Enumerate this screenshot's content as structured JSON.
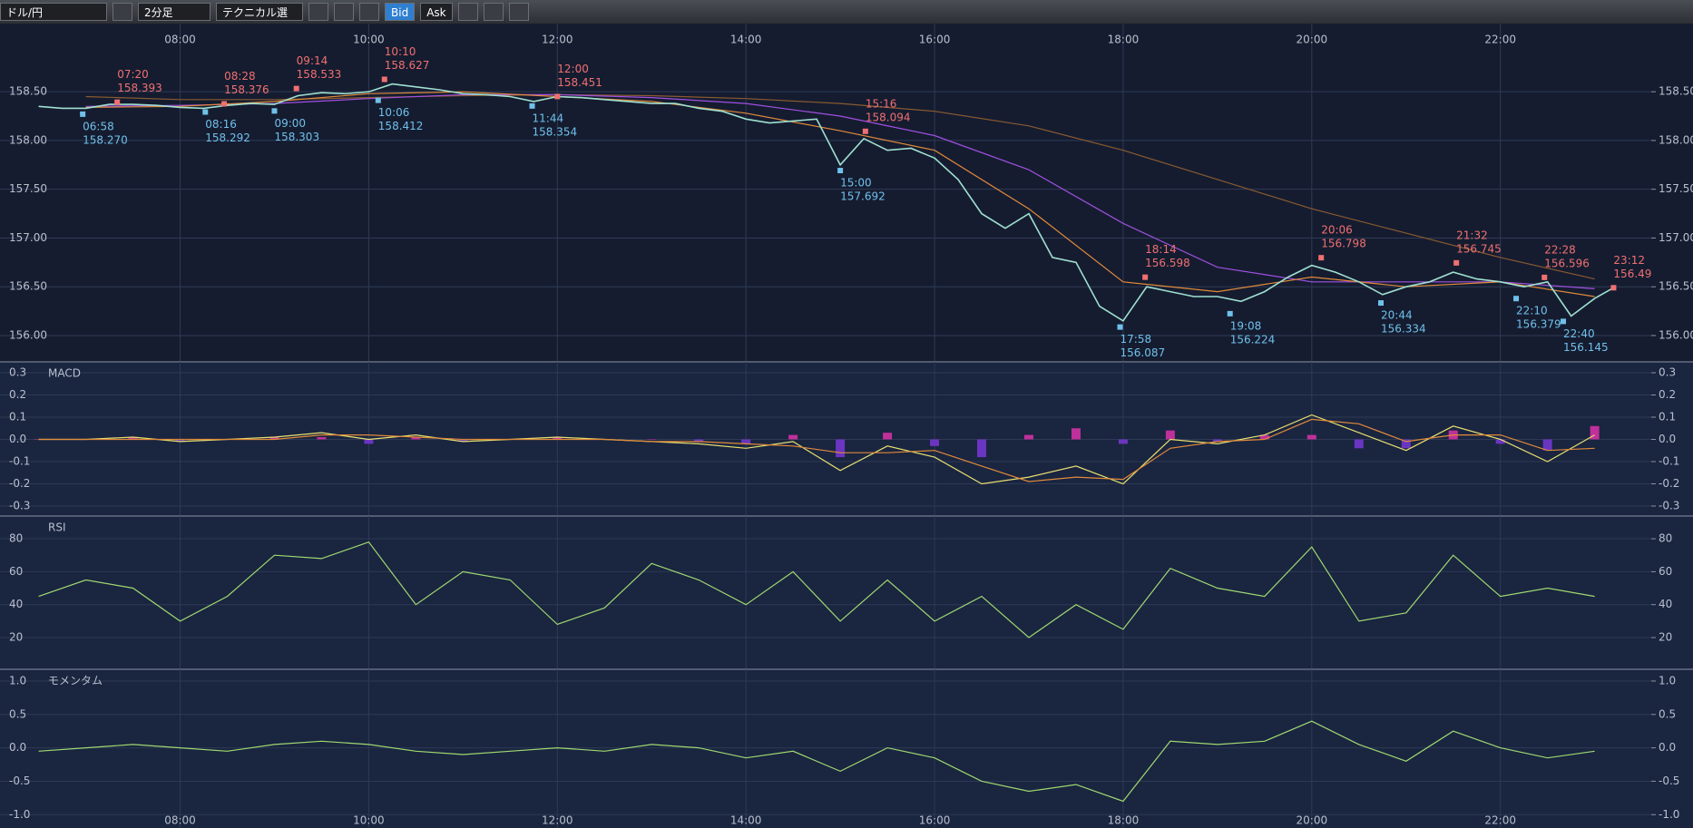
{
  "toolbar": {
    "pair": "ドル/円",
    "timeframe": "2分足",
    "technical": "テクニカル選択",
    "bid": "Bid",
    "ask": "Ask"
  },
  "chart_data": [
    {
      "type": "line",
      "xlim": [
        6.09,
        23.6
      ],
      "xticks": [
        {
          "value": 8,
          "label": "08:00"
        },
        {
          "value": 10,
          "label": "10:00"
        },
        {
          "value": 12,
          "label": "12:00"
        },
        {
          "value": 14,
          "label": "14:00"
        },
        {
          "value": 16,
          "label": "16:00"
        },
        {
          "value": 18,
          "label": "18:00"
        },
        {
          "value": 20,
          "label": "20:00"
        },
        {
          "value": 22,
          "label": "22:00"
        }
      ],
      "xtick_position": "top",
      "ylim": [
        155.73,
        158.92
      ],
      "yticks": [
        {
          "value": 156,
          "label": "156.00"
        },
        {
          "value": 156.5,
          "label": "156.50"
        },
        {
          "value": 157,
          "label": "157.00"
        },
        {
          "value": 157.5,
          "label": "157.50"
        },
        {
          "value": 158,
          "label": "158.00"
        },
        {
          "value": 158.5,
          "label": "158.50"
        }
      ],
      "grid": true,
      "series": [
        {
          "color": "#8a5a30",
          "x": [
            7,
            8,
            9,
            10,
            11,
            12,
            13,
            14,
            15,
            16,
            17,
            18,
            19,
            20,
            21,
            22,
            23
          ],
          "values": [
            158.45,
            158.42,
            158.42,
            158.44,
            158.46,
            158.47,
            158.46,
            158.43,
            158.38,
            158.3,
            158.15,
            157.9,
            157.6,
            157.3,
            157.05,
            156.8,
            156.58
          ]
        },
        {
          "color": "#a050e0",
          "x": [
            7,
            8,
            9,
            10,
            11,
            12,
            13,
            14,
            15,
            16,
            17,
            18,
            19,
            20,
            21,
            22,
            23
          ],
          "values": [
            158.35,
            158.36,
            158.38,
            158.43,
            158.47,
            158.47,
            158.44,
            158.38,
            158.25,
            158.05,
            157.7,
            157.15,
            156.7,
            156.55,
            156.55,
            156.55,
            156.48
          ]
        },
        {
          "color": "#e08a3a",
          "x": [
            7,
            8,
            9,
            10,
            11,
            12,
            13,
            14,
            15,
            16,
            17,
            18,
            19,
            20,
            21,
            22,
            23
          ],
          "values": [
            158.34,
            158.35,
            158.4,
            158.48,
            158.5,
            158.45,
            158.4,
            158.28,
            158.1,
            157.9,
            157.3,
            156.55,
            156.45,
            156.6,
            156.5,
            156.55,
            156.4
          ]
        },
        {
          "color": "#9fe0d0",
          "x": [
            6.5,
            6.75,
            7,
            7.25,
            7.5,
            7.75,
            8,
            8.25,
            8.5,
            8.75,
            9,
            9.25,
            9.5,
            9.75,
            10,
            10.25,
            10.5,
            10.75,
            11,
            11.25,
            11.5,
            11.75,
            12,
            12.25,
            12.5,
            12.75,
            13,
            13.25,
            13.5,
            13.75,
            14,
            14.25,
            14.5,
            14.75,
            15,
            15.25,
            15.5,
            15.75,
            16,
            16.25,
            16.5,
            16.75,
            17,
            17.25,
            17.5,
            17.75,
            18,
            18.25,
            18.5,
            18.75,
            19,
            19.25,
            19.5,
            19.75,
            20,
            20.25,
            20.5,
            20.75,
            21,
            21.25,
            21.5,
            21.75,
            22,
            22.25,
            22.5,
            22.75,
            23,
            23.2
          ],
          "values": [
            158.35,
            158.33,
            158.33,
            158.37,
            158.37,
            158.36,
            158.34,
            158.33,
            158.36,
            158.38,
            158.37,
            158.46,
            158.49,
            158.48,
            158.5,
            158.58,
            158.55,
            158.52,
            158.48,
            158.47,
            158.45,
            158.4,
            158.45,
            158.44,
            158.42,
            158.4,
            158.38,
            158.38,
            158.33,
            158.3,
            158.22,
            158.18,
            158.2,
            158.22,
            157.75,
            158.02,
            157.9,
            157.92,
            157.82,
            157.6,
            157.25,
            157.1,
            157.25,
            156.8,
            156.75,
            156.3,
            156.15,
            156.5,
            156.45,
            156.4,
            156.4,
            156.35,
            156.45,
            156.6,
            156.72,
            156.65,
            156.55,
            156.42,
            156.5,
            156.55,
            156.65,
            156.58,
            156.55,
            156.5,
            156.55,
            156.2,
            156.38,
            156.49
          ]
        }
      ],
      "annotations": [
        {
          "kind": "high",
          "time": "07:20",
          "x": 7.333,
          "value": 158.393
        },
        {
          "kind": "high",
          "time": "08:28",
          "x": 8.467,
          "value": 158.376
        },
        {
          "kind": "high",
          "time": "09:14",
          "x": 9.233,
          "value": 158.533
        },
        {
          "kind": "high",
          "time": "10:10",
          "x": 10.167,
          "value": 158.627
        },
        {
          "kind": "high",
          "time": "12:00",
          "x": 12.0,
          "value": 158.451
        },
        {
          "kind": "high",
          "time": "15:16",
          "x": 15.267,
          "value": 158.094
        },
        {
          "kind": "high",
          "time": "18:14",
          "x": 18.233,
          "value": 156.598
        },
        {
          "kind": "high",
          "time": "20:06",
          "x": 20.1,
          "value": 156.798
        },
        {
          "kind": "high",
          "time": "21:32",
          "x": 21.533,
          "value": 156.745
        },
        {
          "kind": "high",
          "time": "22:28",
          "x": 22.467,
          "value": 156.596
        },
        {
          "kind": "high",
          "time": "23:12",
          "x": 23.2,
          "value": 156.49
        },
        {
          "kind": "low",
          "time": "06:58",
          "x": 6.967,
          "value": 158.27,
          "label": "158.270"
        },
        {
          "kind": "low",
          "time": "08:16",
          "x": 8.267,
          "value": 158.292
        },
        {
          "kind": "low",
          "time": "09:00",
          "x": 9.0,
          "value": 158.303
        },
        {
          "kind": "low",
          "time": "10:06",
          "x": 10.1,
          "value": 158.412
        },
        {
          "kind": "low",
          "time": "11:44",
          "x": 11.733,
          "value": 158.354
        },
        {
          "kind": "low",
          "time": "15:00",
          "x": 15.0,
          "value": 157.692
        },
        {
          "kind": "low",
          "time": "17:58",
          "x": 17.967,
          "value": 156.087
        },
        {
          "kind": "low",
          "time": "19:08",
          "x": 19.133,
          "value": 156.224
        },
        {
          "kind": "low",
          "time": "20:44",
          "x": 20.733,
          "value": 156.334
        },
        {
          "kind": "low",
          "time": "22:10",
          "x": 22.167,
          "value": 156.379
        },
        {
          "kind": "low",
          "time": "22:40",
          "x": 22.667,
          "value": 156.145
        }
      ]
    },
    {
      "type": "line",
      "title": "MACD",
      "xlim": [
        6.09,
        23.6
      ],
      "x": [
        6.5,
        7,
        7.5,
        8,
        8.5,
        9,
        9.5,
        10,
        10.5,
        11,
        11.5,
        12,
        12.5,
        13,
        13.5,
        14,
        14.5,
        15,
        15.5,
        16,
        16.5,
        17,
        17.5,
        18,
        18.5,
        19,
        19.5,
        20,
        20.5,
        21,
        21.5,
        22,
        22.5,
        23
      ],
      "ylim": [
        -0.345,
        0.349
      ],
      "yticks": [
        -0.3,
        -0.2,
        -0.1,
        {
          "value": 0,
          "label": "0.0"
        },
        0.1,
        0.2,
        0.3
      ],
      "grid": true,
      "series": [
        {
          "type": "bar",
          "color": "#c0309a",
          "negative_color": "#6a35c0",
          "values": [
            0,
            0,
            0.01,
            -0.01,
            0,
            0.01,
            0.01,
            -0.02,
            0.01,
            -0.01,
            0,
            0.01,
            0,
            0,
            -0.01,
            -0.02,
            0.02,
            -0.08,
            0.03,
            -0.03,
            -0.08,
            0.02,
            0.05,
            -0.02,
            0.04,
            -0.01,
            0.02,
            0.02,
            -0.04,
            -0.04,
            0.04,
            -0.02,
            -0.05,
            0.06
          ]
        },
        {
          "color": "#e8e070",
          "values": [
            0,
            0,
            0.01,
            -0.01,
            0,
            0.01,
            0.03,
            0,
            0.02,
            -0.01,
            0,
            0.01,
            0,
            -0.01,
            -0.02,
            -0.04,
            -0.01,
            -0.14,
            -0.03,
            -0.08,
            -0.2,
            -0.17,
            -0.12,
            -0.2,
            0,
            -0.02,
            0.02,
            0.11,
            0.03,
            -0.05,
            0.06,
            0,
            -0.1,
            0.02
          ]
        },
        {
          "color": "#e08a3a",
          "values": [
            0,
            0,
            0,
            0,
            0,
            0,
            0.02,
            0.02,
            0.01,
            0,
            0,
            0,
            0,
            -0.01,
            -0.01,
            -0.02,
            -0.03,
            -0.06,
            -0.06,
            -0.05,
            -0.12,
            -0.19,
            -0.17,
            -0.18,
            -0.04,
            -0.01,
            0,
            0.09,
            0.07,
            -0.01,
            0.02,
            0.02,
            -0.05,
            -0.04
          ]
        }
      ]
    },
    {
      "type": "line",
      "title": "RSI",
      "xlim": [
        6.09,
        23.6
      ],
      "x": [
        6.5,
        7,
        7.5,
        8,
        8.5,
        9,
        9.5,
        10,
        10.5,
        11,
        11.5,
        12,
        12.5,
        13,
        13.5,
        14,
        14.5,
        15,
        15.5,
        16,
        16.5,
        17,
        17.5,
        18,
        18.5,
        19,
        19.5,
        20,
        20.5,
        21,
        21.5,
        22,
        22.5,
        23
      ],
      "ylim": [
        0.74,
        93.8
      ],
      "yticks": [
        20,
        40,
        60,
        80
      ],
      "grid": true,
      "series": [
        {
          "color": "#9fd870",
          "values": [
            45,
            55,
            50,
            30,
            45,
            70,
            68,
            78,
            40,
            60,
            55,
            28,
            38,
            65,
            55,
            40,
            60,
            30,
            55,
            30,
            45,
            20,
            40,
            25,
            62,
            50,
            45,
            75,
            30,
            35,
            70,
            45,
            50,
            45
          ]
        }
      ]
    },
    {
      "type": "line",
      "title": "モメンタム",
      "xlim": [
        6.09,
        23.6
      ],
      "xticks": [
        {
          "value": 8,
          "label": "08:00"
        },
        {
          "value": 10,
          "label": "10:00"
        },
        {
          "value": 12,
          "label": "12:00"
        },
        {
          "value": 14,
          "label": "14:00"
        },
        {
          "value": 16,
          "label": "16:00"
        },
        {
          "value": 18,
          "label": "18:00"
        },
        {
          "value": 20,
          "label": "20:00"
        },
        {
          "value": 22,
          "label": "22:00"
        }
      ],
      "xtick_position": "bottom",
      "x": [
        6.5,
        7,
        7.5,
        8,
        8.5,
        9,
        9.5,
        10,
        10.5,
        11,
        11.5,
        12,
        12.5,
        13,
        13.5,
        14,
        14.5,
        15,
        15.5,
        16,
        16.5,
        17,
        17.5,
        18,
        18.5,
        19,
        19.5,
        20,
        20.5,
        21,
        21.5,
        22,
        22.5,
        23
      ],
      "ylim": [
        -1.2,
        1.176
      ],
      "yticks": [
        {
          "value": -1,
          "label": "-1.0"
        },
        -0.5,
        {
          "value": 0,
          "label": "0.0"
        },
        0.5,
        {
          "value": 1,
          "label": "1.0"
        }
      ],
      "grid": true,
      "series": [
        {
          "color": "#9fd870",
          "values": [
            -0.05,
            0,
            0.05,
            0,
            -0.05,
            0.05,
            0.1,
            0.05,
            -0.05,
            -0.1,
            -0.05,
            0,
            -0.05,
            0.05,
            0,
            -0.15,
            -0.05,
            -0.35,
            0,
            -0.15,
            -0.5,
            -0.65,
            -0.55,
            -0.8,
            0.1,
            0.05,
            0.1,
            0.4,
            0.05,
            -0.2,
            0.25,
            0,
            -0.15,
            -0.05
          ]
        }
      ]
    }
  ]
}
